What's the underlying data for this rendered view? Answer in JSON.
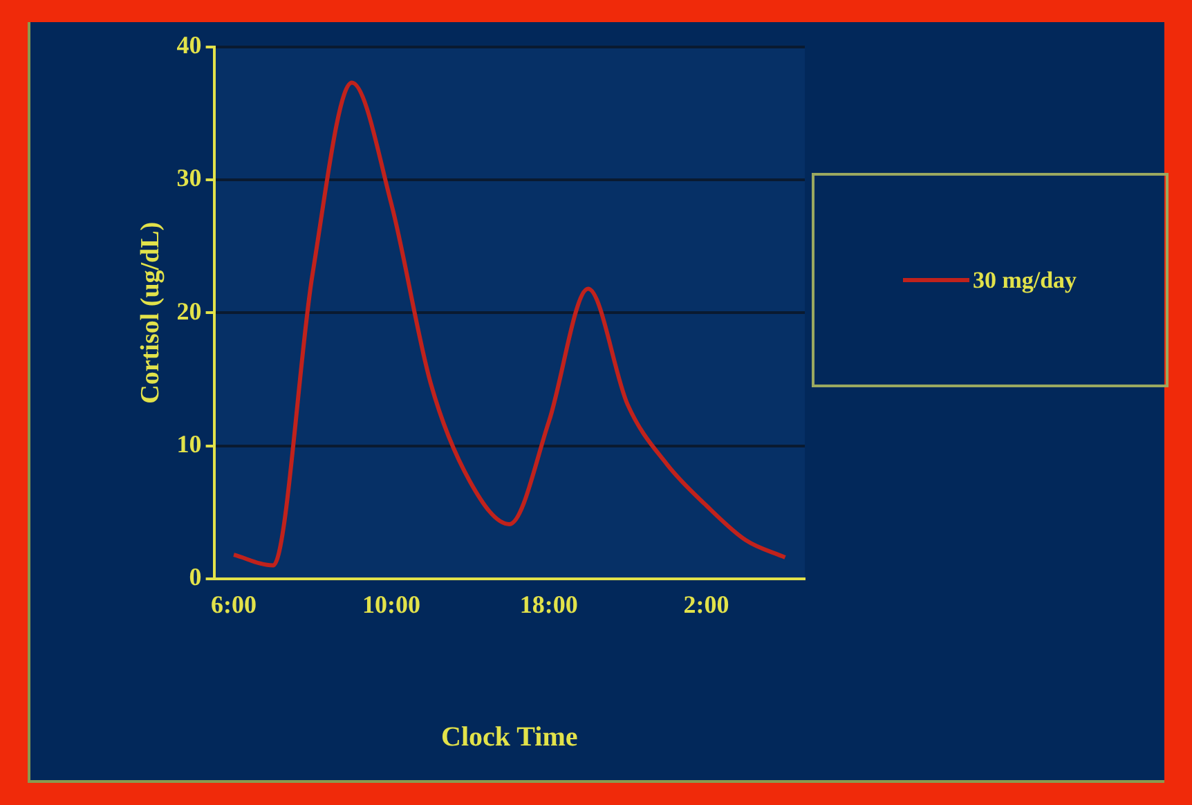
{
  "chart_data": {
    "type": "line",
    "xlabel": "Clock Time",
    "ylabel": "Cortisol (ug/dL)",
    "categories": [
      "6:00",
      null,
      null,
      null,
      "10:00",
      null,
      null,
      null,
      "18:00",
      null,
      null,
      null,
      "2:00",
      null,
      null
    ],
    "series": [
      {
        "name": "30 mg/day",
        "color": "#c0221c",
        "values": [
          1.8,
          1.0,
          22.9,
          37.3,
          28.2,
          14.7,
          7.3,
          4.1,
          11.8,
          21.8,
          13.1,
          8.6,
          5.5,
          2.9,
          1.6
        ]
      }
    ],
    "ylim": [
      0,
      40
    ],
    "yticks": [
      0,
      10,
      20,
      30,
      40
    ],
    "grid": "y",
    "legend": "right"
  }
}
